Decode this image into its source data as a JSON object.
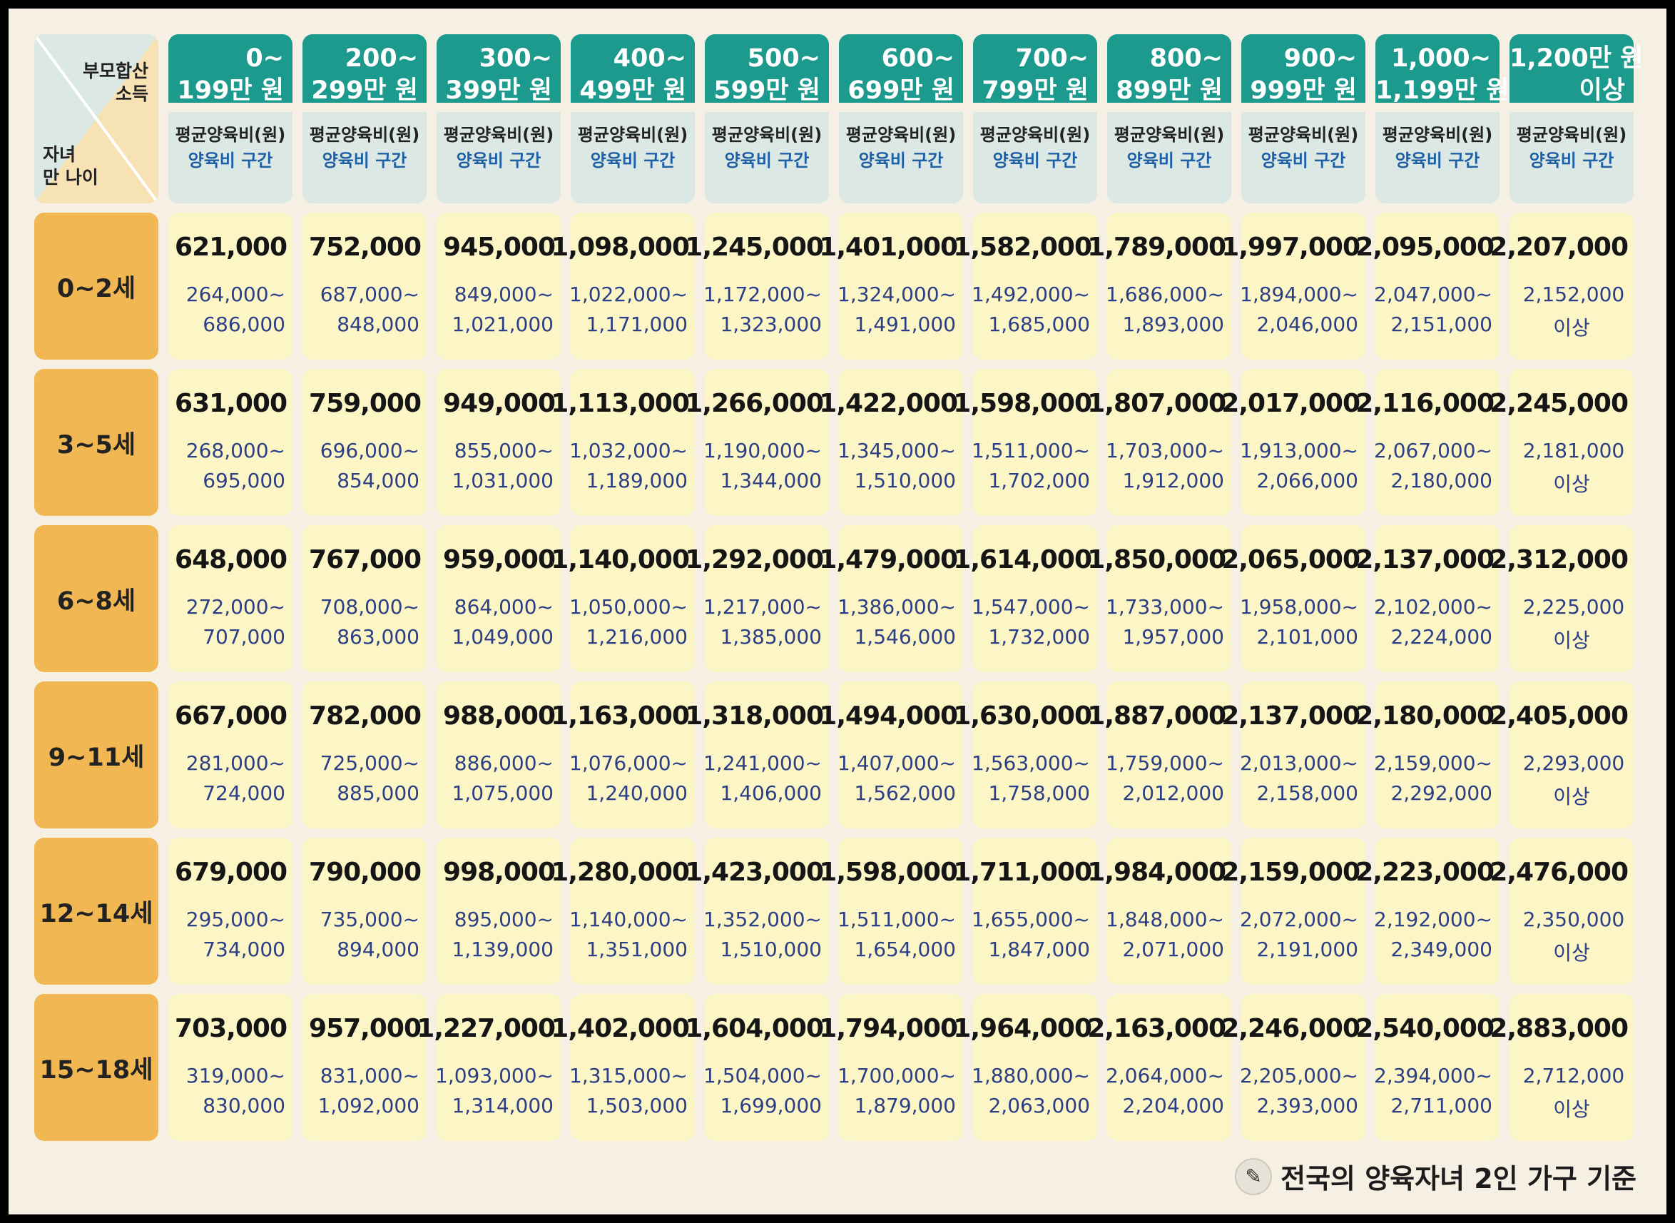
{
  "corner": {
    "top_line1": "부모합산",
    "top_line2": "소득",
    "bottom_line1": "자녀",
    "bottom_line2": "만 나이"
  },
  "columns": [
    {
      "line1": "0~",
      "line2": "199만 원"
    },
    {
      "line1": "200~",
      "line2": "299만 원"
    },
    {
      "line1": "300~",
      "line2": "399만 원"
    },
    {
      "line1": "400~",
      "line2": "499만 원"
    },
    {
      "line1": "500~",
      "line2": "599만 원"
    },
    {
      "line1": "600~",
      "line2": "699만 원"
    },
    {
      "line1": "700~",
      "line2": "799만 원"
    },
    {
      "line1": "800~",
      "line2": "899만 원"
    },
    {
      "line1": "900~",
      "line2": "999만 원"
    },
    {
      "line1": "1,000~",
      "line2": "1,199만 원"
    },
    {
      "line1": "1,200만 원",
      "line2": "이상"
    }
  ],
  "subheader": {
    "avg_label": "평균양육비(원)",
    "range_label": "양육비 구간"
  },
  "rows": [
    {
      "age": "0~2세",
      "cells": [
        {
          "avg": "621,000",
          "lo": "264,000~",
          "hi": "686,000"
        },
        {
          "avg": "752,000",
          "lo": "687,000~",
          "hi": "848,000"
        },
        {
          "avg": "945,000",
          "lo": "849,000~",
          "hi": "1,021,000"
        },
        {
          "avg": "1,098,000",
          "lo": "1,022,000~",
          "hi": "1,171,000"
        },
        {
          "avg": "1,245,000",
          "lo": "1,172,000~",
          "hi": "1,323,000"
        },
        {
          "avg": "1,401,000",
          "lo": "1,324,000~",
          "hi": "1,491,000"
        },
        {
          "avg": "1,582,000",
          "lo": "1,492,000~",
          "hi": "1,685,000"
        },
        {
          "avg": "1,789,000",
          "lo": "1,686,000~",
          "hi": "1,893,000"
        },
        {
          "avg": "1,997,000",
          "lo": "1,894,000~",
          "hi": "2,046,000"
        },
        {
          "avg": "2,095,000",
          "lo": "2,047,000~",
          "hi": "2,151,000"
        },
        {
          "avg": "2,207,000",
          "lo": "2,152,000",
          "hi": "이상"
        }
      ]
    },
    {
      "age": "3~5세",
      "cells": [
        {
          "avg": "631,000",
          "lo": "268,000~",
          "hi": "695,000"
        },
        {
          "avg": "759,000",
          "lo": "696,000~",
          "hi": "854,000"
        },
        {
          "avg": "949,000",
          "lo": "855,000~",
          "hi": "1,031,000"
        },
        {
          "avg": "1,113,000",
          "lo": "1,032,000~",
          "hi": "1,189,000"
        },
        {
          "avg": "1,266,000",
          "lo": "1,190,000~",
          "hi": "1,344,000"
        },
        {
          "avg": "1,422,000",
          "lo": "1,345,000~",
          "hi": "1,510,000"
        },
        {
          "avg": "1,598,000",
          "lo": "1,511,000~",
          "hi": "1,702,000"
        },
        {
          "avg": "1,807,000",
          "lo": "1,703,000~",
          "hi": "1,912,000"
        },
        {
          "avg": "2,017,000",
          "lo": "1,913,000~",
          "hi": "2,066,000"
        },
        {
          "avg": "2,116,000",
          "lo": "2,067,000~",
          "hi": "2,180,000"
        },
        {
          "avg": "2,245,000",
          "lo": "2,181,000",
          "hi": "이상"
        }
      ]
    },
    {
      "age": "6~8세",
      "cells": [
        {
          "avg": "648,000",
          "lo": "272,000~",
          "hi": "707,000"
        },
        {
          "avg": "767,000",
          "lo": "708,000~",
          "hi": "863,000"
        },
        {
          "avg": "959,000",
          "lo": "864,000~",
          "hi": "1,049,000"
        },
        {
          "avg": "1,140,000",
          "lo": "1,050,000~",
          "hi": "1,216,000"
        },
        {
          "avg": "1,292,000",
          "lo": "1,217,000~",
          "hi": "1,385,000"
        },
        {
          "avg": "1,479,000",
          "lo": "1,386,000~",
          "hi": "1,546,000"
        },
        {
          "avg": "1,614,000",
          "lo": "1,547,000~",
          "hi": "1,732,000"
        },
        {
          "avg": "1,850,000",
          "lo": "1,733,000~",
          "hi": "1,957,000"
        },
        {
          "avg": "2,065,000",
          "lo": "1,958,000~",
          "hi": "2,101,000"
        },
        {
          "avg": "2,137,000",
          "lo": "2,102,000~",
          "hi": "2,224,000"
        },
        {
          "avg": "2,312,000",
          "lo": "2,225,000",
          "hi": "이상"
        }
      ]
    },
    {
      "age": "9~11세",
      "cells": [
        {
          "avg": "667,000",
          "lo": "281,000~",
          "hi": "724,000"
        },
        {
          "avg": "782,000",
          "lo": "725,000~",
          "hi": "885,000"
        },
        {
          "avg": "988,000",
          "lo": "886,000~",
          "hi": "1,075,000"
        },
        {
          "avg": "1,163,000",
          "lo": "1,076,000~",
          "hi": "1,240,000"
        },
        {
          "avg": "1,318,000",
          "lo": "1,241,000~",
          "hi": "1,406,000"
        },
        {
          "avg": "1,494,000",
          "lo": "1,407,000~",
          "hi": "1,562,000"
        },
        {
          "avg": "1,630,000",
          "lo": "1,563,000~",
          "hi": "1,758,000"
        },
        {
          "avg": "1,887,000",
          "lo": "1,759,000~",
          "hi": "2,012,000"
        },
        {
          "avg": "2,137,000",
          "lo": "2,013,000~",
          "hi": "2,158,000"
        },
        {
          "avg": "2,180,000",
          "lo": "2,159,000~",
          "hi": "2,292,000"
        },
        {
          "avg": "2,405,000",
          "lo": "2,293,000",
          "hi": "이상"
        }
      ]
    },
    {
      "age": "12~14세",
      "cells": [
        {
          "avg": "679,000",
          "lo": "295,000~",
          "hi": "734,000"
        },
        {
          "avg": "790,000",
          "lo": "735,000~",
          "hi": "894,000"
        },
        {
          "avg": "998,000",
          "lo": "895,000~",
          "hi": "1,139,000"
        },
        {
          "avg": "1,280,000",
          "lo": "1,140,000~",
          "hi": "1,351,000"
        },
        {
          "avg": "1,423,000",
          "lo": "1,352,000~",
          "hi": "1,510,000"
        },
        {
          "avg": "1,598,000",
          "lo": "1,511,000~",
          "hi": "1,654,000"
        },
        {
          "avg": "1,711,000",
          "lo": "1,655,000~",
          "hi": "1,847,000"
        },
        {
          "avg": "1,984,000",
          "lo": "1,848,000~",
          "hi": "2,071,000"
        },
        {
          "avg": "2,159,000",
          "lo": "2,072,000~",
          "hi": "2,191,000"
        },
        {
          "avg": "2,223,000",
          "lo": "2,192,000~",
          "hi": "2,349,000"
        },
        {
          "avg": "2,476,000",
          "lo": "2,350,000",
          "hi": "이상"
        }
      ]
    },
    {
      "age": "15~18세",
      "cells": [
        {
          "avg": "703,000",
          "lo": "319,000~",
          "hi": "830,000"
        },
        {
          "avg": "957,000",
          "lo": "831,000~",
          "hi": "1,092,000"
        },
        {
          "avg": "1,227,000",
          "lo": "1,093,000~",
          "hi": "1,314,000"
        },
        {
          "avg": "1,402,000",
          "lo": "1,315,000~",
          "hi": "1,503,000"
        },
        {
          "avg": "1,604,000",
          "lo": "1,504,000~",
          "hi": "1,699,000"
        },
        {
          "avg": "1,794,000",
          "lo": "1,700,000~",
          "hi": "1,879,000"
        },
        {
          "avg": "1,964,000",
          "lo": "1,880,000~",
          "hi": "2,063,000"
        },
        {
          "avg": "2,163,000",
          "lo": "2,064,000~",
          "hi": "2,204,000"
        },
        {
          "avg": "2,246,000",
          "lo": "2,205,000~",
          "hi": "2,393,000"
        },
        {
          "avg": "2,540,000",
          "lo": "2,394,000~",
          "hi": "2,711,000"
        },
        {
          "avg": "2,883,000",
          "lo": "2,712,000",
          "hi": "이상"
        }
      ]
    }
  ],
  "footnote": "전국의 양육자녀 2인 가구 기준",
  "icons": {
    "footnote_icon": "pencil-icon"
  },
  "colors": {
    "header": "#1c9a8e",
    "age_cell": "#f0b752",
    "data_cell": "#fcf6c6",
    "range_text": "#2c3f86"
  }
}
